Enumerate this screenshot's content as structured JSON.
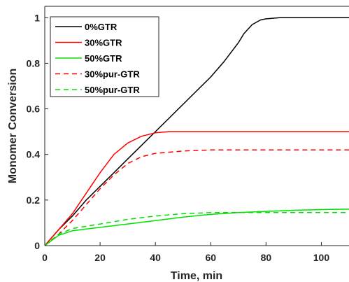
{
  "chart_data": {
    "type": "line",
    "xlabel": "Time, min",
    "ylabel": "Monomer Conversion",
    "xlim": [
      0,
      110
    ],
    "ylim": [
      0,
      1.05
    ],
    "xticks": [
      0,
      20,
      40,
      60,
      80,
      100
    ],
    "yticks": [
      0,
      0.2,
      0.4,
      0.6,
      0.8,
      1
    ],
    "xtick_labels": [
      "0",
      "20",
      "40",
      "60",
      "80",
      "100"
    ],
    "ytick_labels": [
      "0",
      "0.2",
      "0.4",
      "0.6",
      "0.8",
      "1"
    ],
    "grid": false,
    "legend_position": "top-left",
    "series": [
      {
        "name": "0%GTR",
        "color": "#000000",
        "dash": "solid",
        "x": [
          0,
          5,
          10,
          15,
          20,
          25,
          30,
          35,
          40,
          45,
          50,
          55,
          60,
          65,
          70,
          72,
          75,
          78,
          80,
          85,
          90,
          95,
          100,
          105,
          110
        ],
        "y": [
          0,
          0.07,
          0.13,
          0.2,
          0.26,
          0.32,
          0.38,
          0.44,
          0.5,
          0.56,
          0.62,
          0.68,
          0.74,
          0.81,
          0.89,
          0.93,
          0.97,
          0.99,
          0.995,
          1.0,
          1.0,
          1.0,
          1.0,
          1.0,
          1.0
        ]
      },
      {
        "name": "30%GTR",
        "color": "#ff0000",
        "dash": "solid",
        "x": [
          0,
          5,
          10,
          15,
          20,
          25,
          30,
          35,
          40,
          45,
          50,
          60,
          70,
          80,
          90,
          100,
          110
        ],
        "y": [
          0,
          0.07,
          0.14,
          0.23,
          0.32,
          0.4,
          0.45,
          0.48,
          0.495,
          0.5,
          0.5,
          0.5,
          0.5,
          0.5,
          0.5,
          0.5,
          0.5
        ]
      },
      {
        "name": "50%GTR",
        "color": "#00e000",
        "dash": "solid",
        "x": [
          0,
          5,
          10,
          20,
          30,
          40,
          50,
          60,
          70,
          80,
          90,
          100,
          110
        ],
        "y": [
          0,
          0.045,
          0.065,
          0.08,
          0.095,
          0.11,
          0.125,
          0.137,
          0.145,
          0.15,
          0.155,
          0.158,
          0.16
        ]
      },
      {
        "name": "30%pur-GTR",
        "color": "#ff0000",
        "dash": "dashed",
        "x": [
          0,
          5,
          10,
          15,
          20,
          25,
          30,
          35,
          40,
          45,
          50,
          60,
          70,
          80,
          90,
          100,
          110
        ],
        "y": [
          0,
          0.05,
          0.11,
          0.18,
          0.25,
          0.31,
          0.36,
          0.39,
          0.405,
          0.41,
          0.415,
          0.42,
          0.42,
          0.42,
          0.42,
          0.42,
          0.42
        ]
      },
      {
        "name": "50%pur-GTR",
        "color": "#00e000",
        "dash": "dashed",
        "x": [
          0,
          5,
          10,
          20,
          30,
          40,
          50,
          60,
          70,
          80,
          90,
          100,
          110
        ],
        "y": [
          0,
          0.05,
          0.075,
          0.095,
          0.115,
          0.13,
          0.14,
          0.145,
          0.145,
          0.145,
          0.145,
          0.145,
          0.145
        ]
      }
    ]
  }
}
